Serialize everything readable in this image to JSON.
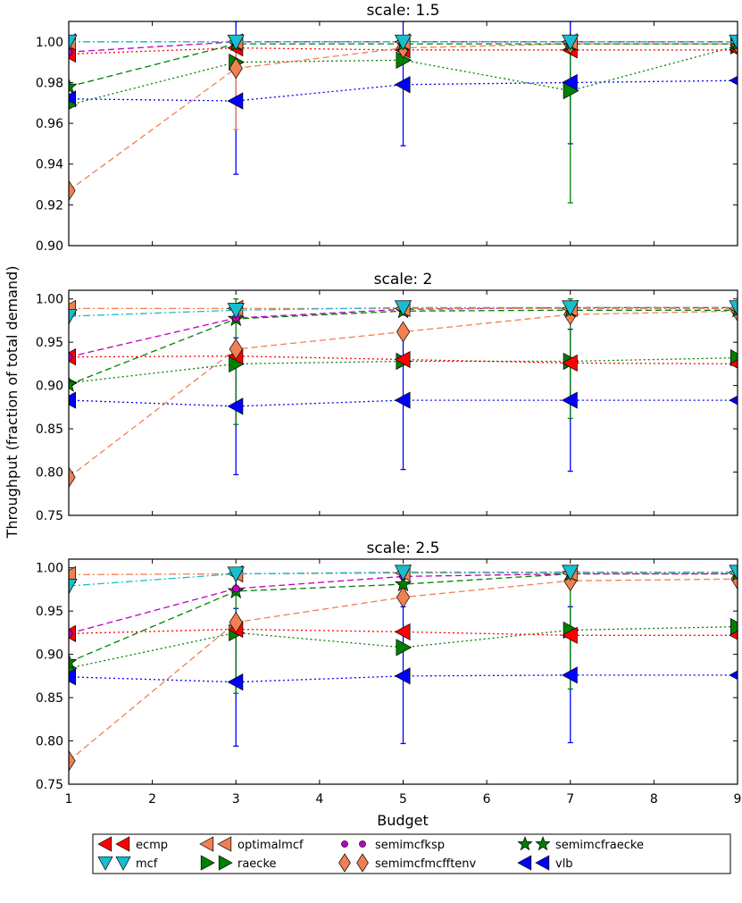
{
  "figure": {
    "ylabel": "Throughput (fraction of total demand)",
    "xlabel": "Budget"
  },
  "legend": {
    "placement": "bottom-center",
    "entries": [
      {
        "key": "ecmp",
        "label": "ecmp",
        "color": "#ff0000",
        "marker": "triangle-left",
        "linestyle": "dotted"
      },
      {
        "key": "mcf",
        "label": "mcf",
        "color": "#17becf",
        "marker": "triangle-down",
        "linestyle": "dashdot"
      },
      {
        "key": "optimalmcf",
        "label": "optimalmcf",
        "color": "#f08050",
        "marker": "triangle-left",
        "linestyle": "dashdot"
      },
      {
        "key": "raecke",
        "label": "raecke",
        "color": "#008000",
        "marker": "triangle-right",
        "linestyle": "dotted"
      },
      {
        "key": "semimcfksp",
        "label": "semimcfksp",
        "color": "#bf00bf",
        "marker": "circle",
        "linestyle": "dashed"
      },
      {
        "key": "semimcfmcfftenv",
        "label": "semimcfmcfftenv",
        "color": "#f08050",
        "marker": "diamond",
        "linestyle": "dashed"
      },
      {
        "key": "semimcfraecke",
        "label": "semimcfraecke",
        "color": "#008000",
        "marker": "star",
        "linestyle": "dashed"
      },
      {
        "key": "vlb",
        "label": "vlb",
        "color": "#0000ff",
        "marker": "triangle-left",
        "linestyle": "dotted"
      }
    ]
  },
  "chart_data": [
    {
      "type": "line",
      "title": "scale: 1.5",
      "xlabel": "Budget",
      "ylabel": "Throughput (fraction of total demand)",
      "x": [
        1,
        3,
        5,
        7,
        9
      ],
      "xlim": [
        1,
        9
      ],
      "ylim": [
        0.9,
        1.01
      ],
      "xticks": [
        "1",
        "2",
        "3",
        "4",
        "5",
        "6",
        "7",
        "8",
        "9"
      ],
      "yticks": [
        "0.90",
        "0.92",
        "0.94",
        "0.96",
        "0.98",
        "1.00"
      ],
      "ytick_values": [
        0.9,
        0.92,
        0.94,
        0.96,
        0.98,
        1.0
      ],
      "show_xticklabels": false,
      "series": [
        {
          "key": "ecmp",
          "name": "ecmp",
          "values": [
            0.994,
            0.997,
            0.996,
            0.996,
            0.996
          ]
        },
        {
          "key": "mcf",
          "name": "mcf",
          "values": [
            1.0,
            1.0,
            1.0,
            1.0,
            1.0
          ]
        },
        {
          "key": "optimalmcf",
          "name": "optimalmcf",
          "values": [
            1.0,
            1.0,
            1.0,
            1.0,
            1.0
          ]
        },
        {
          "key": "raecke",
          "name": "raecke",
          "values": [
            0.969,
            0.99,
            0.991,
            0.976,
            0.998
          ]
        },
        {
          "key": "semimcfksp",
          "name": "semimcfksp",
          "values": [
            0.995,
            1.0,
            1.0,
            1.0,
            1.0
          ]
        },
        {
          "key": "semimcfmcfftenv",
          "name": "semimcfmcfftenv",
          "values": [
            0.927,
            0.987,
            0.997,
            0.999,
            0.999
          ]
        },
        {
          "key": "semimcfraecke",
          "name": "semimcfraecke",
          "values": [
            0.978,
            0.999,
            0.999,
            0.999,
            0.999
          ]
        },
        {
          "key": "vlb",
          "name": "vlb",
          "values": [
            0.972,
            0.971,
            0.979,
            0.98,
            0.981
          ]
        }
      ],
      "errorbars": [
        {
          "key": "vlb",
          "x": 3,
          "low": 0.935,
          "high": 1.01
        },
        {
          "key": "vlb",
          "x": 5,
          "low": 0.949,
          "high": 1.01
        },
        {
          "key": "vlb",
          "x": 7,
          "low": 0.95,
          "high": 1.01
        },
        {
          "key": "raecke",
          "x": 7,
          "low": 0.921,
          "high": 1.0
        },
        {
          "key": "optimalmcf",
          "x": 3,
          "low": 0.957,
          "high": 1.0
        }
      ]
    },
    {
      "type": "line",
      "title": "scale: 2",
      "xlabel": "Budget",
      "ylabel": "Throughput (fraction of total demand)",
      "x": [
        1,
        3,
        5,
        7,
        9
      ],
      "xlim": [
        1,
        9
      ],
      "ylim": [
        0.75,
        1.01
      ],
      "xticks": [
        "1",
        "2",
        "3",
        "4",
        "5",
        "6",
        "7",
        "8",
        "9"
      ],
      "yticks": [
        "0.75",
        "0.80",
        "0.85",
        "0.90",
        "0.95",
        "1.00"
      ],
      "ytick_values": [
        0.75,
        0.8,
        0.85,
        0.9,
        0.95,
        1.0
      ],
      "show_xticklabels": false,
      "series": [
        {
          "key": "ecmp",
          "name": "ecmp",
          "values": [
            0.933,
            0.934,
            0.93,
            0.926,
            0.925
          ]
        },
        {
          "key": "mcf",
          "name": "mcf",
          "values": [
            0.98,
            0.987,
            0.99,
            0.99,
            0.99
          ]
        },
        {
          "key": "optimalmcf",
          "name": "optimalmcf",
          "values": [
            0.989,
            0.989,
            0.989,
            0.989,
            0.989
          ]
        },
        {
          "key": "raecke",
          "name": "raecke",
          "values": [
            0.903,
            0.925,
            0.928,
            0.928,
            0.932
          ]
        },
        {
          "key": "semimcfksp",
          "name": "semimcfksp",
          "values": [
            0.933,
            0.978,
            0.988,
            0.99,
            0.99
          ]
        },
        {
          "key": "semimcfmcfftenv",
          "name": "semimcfmcfftenv",
          "values": [
            0.794,
            0.942,
            0.962,
            0.982,
            0.986
          ]
        },
        {
          "key": "semimcfraecke",
          "name": "semimcfraecke",
          "values": [
            0.901,
            0.977,
            0.986,
            0.987,
            0.987
          ]
        },
        {
          "key": "vlb",
          "name": "vlb",
          "values": [
            0.883,
            0.876,
            0.883,
            0.883,
            0.883
          ]
        }
      ],
      "errorbars": [
        {
          "key": "vlb",
          "x": 3,
          "low": 0.797,
          "high": 0.955
        },
        {
          "key": "vlb",
          "x": 5,
          "low": 0.803,
          "high": 0.963
        },
        {
          "key": "vlb",
          "x": 7,
          "low": 0.801,
          "high": 0.965
        },
        {
          "key": "raecke",
          "x": 3,
          "low": 0.855,
          "high": 1.0
        },
        {
          "key": "raecke",
          "x": 7,
          "low": 0.862,
          "high": 1.0
        }
      ]
    },
    {
      "type": "line",
      "title": "scale: 2.5",
      "xlabel": "Budget",
      "ylabel": "Throughput (fraction of total demand)",
      "x": [
        1,
        3,
        5,
        7,
        9
      ],
      "xlim": [
        1,
        9
      ],
      "ylim": [
        0.75,
        1.01
      ],
      "xticks": [
        "1",
        "2",
        "3",
        "4",
        "5",
        "6",
        "7",
        "8",
        "9"
      ],
      "yticks": [
        "0.75",
        "0.80",
        "0.85",
        "0.90",
        "0.95",
        "1.00"
      ],
      "ytick_values": [
        0.75,
        0.8,
        0.85,
        0.9,
        0.95,
        1.0
      ],
      "show_xticklabels": true,
      "series": [
        {
          "key": "ecmp",
          "name": "ecmp",
          "values": [
            0.924,
            0.929,
            0.926,
            0.922,
            0.922
          ]
        },
        {
          "key": "mcf",
          "name": "mcf",
          "values": [
            0.979,
            0.993,
            0.995,
            0.995,
            0.995
          ]
        },
        {
          "key": "optimalmcf",
          "name": "optimalmcf",
          "values": [
            0.992,
            0.993,
            0.994,
            0.994,
            0.994
          ]
        },
        {
          "key": "raecke",
          "name": "raecke",
          "values": [
            0.884,
            0.925,
            0.908,
            0.928,
            0.932
          ]
        },
        {
          "key": "semimcfksp",
          "name": "semimcfksp",
          "values": [
            0.924,
            0.976,
            0.99,
            0.993,
            0.993
          ]
        },
        {
          "key": "semimcfmcfftenv",
          "name": "semimcfmcfftenv",
          "values": [
            0.777,
            0.937,
            0.966,
            0.985,
            0.987
          ]
        },
        {
          "key": "semimcfraecke",
          "name": "semimcfraecke",
          "values": [
            0.891,
            0.973,
            0.981,
            0.993,
            0.993
          ]
        },
        {
          "key": "vlb",
          "name": "vlb",
          "values": [
            0.874,
            0.868,
            0.875,
            0.876,
            0.876
          ]
        }
      ],
      "errorbars": [
        {
          "key": "vlb",
          "x": 3,
          "low": 0.794,
          "high": 0.953
        },
        {
          "key": "vlb",
          "x": 5,
          "low": 0.797,
          "high": 0.955
        },
        {
          "key": "vlb",
          "x": 7,
          "low": 0.798,
          "high": 0.955
        },
        {
          "key": "raecke",
          "x": 3,
          "low": 0.855,
          "high": 1.0
        },
        {
          "key": "raecke",
          "x": 7,
          "low": 0.86,
          "high": 1.0
        }
      ]
    }
  ]
}
